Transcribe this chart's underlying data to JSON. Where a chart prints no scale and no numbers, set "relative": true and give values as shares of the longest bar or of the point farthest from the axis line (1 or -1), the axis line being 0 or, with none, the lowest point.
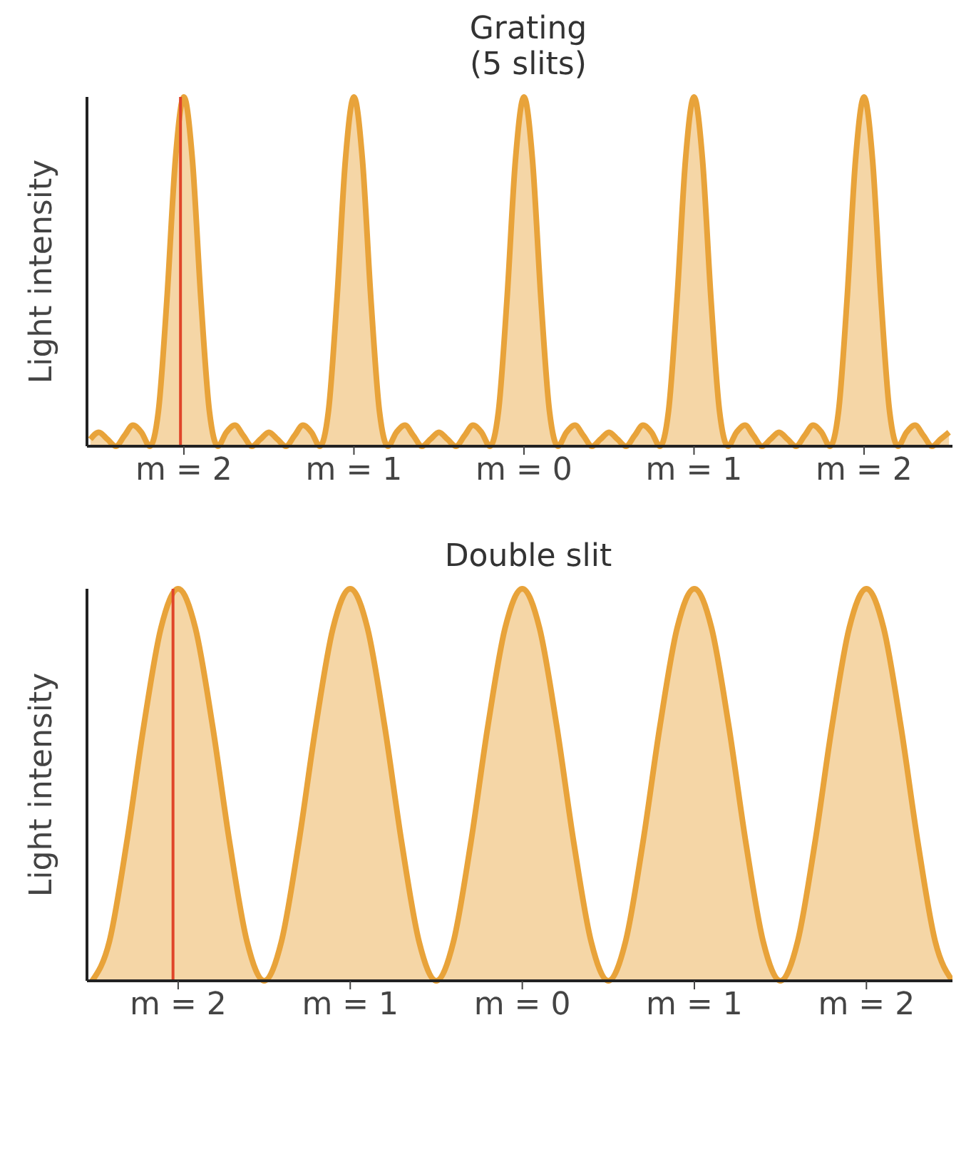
{
  "chart_data": [
    {
      "type": "area",
      "title": "Grating",
      "subtitle": "(5 slits)",
      "ylabel": "Light intensity",
      "relative": true,
      "x": [
        -2.55,
        -2.5,
        -2.45,
        -2.4,
        -2.35,
        -2.3,
        -2.25,
        -2.2,
        -2.15,
        -2.1,
        -2.05,
        -2.0,
        -1.95,
        -1.9,
        -1.85,
        -1.8,
        -1.75,
        -1.7,
        -1.65,
        -1.6,
        -1.55,
        -1.5,
        -1.45,
        -1.4,
        -1.35,
        -1.3,
        -1.25,
        -1.2,
        -1.15,
        -1.1,
        -1.05,
        -1.0,
        -0.95,
        -0.9,
        -0.85,
        -0.8,
        -0.75,
        -0.7,
        -0.65,
        -0.6,
        -0.55,
        -0.5,
        -0.45,
        -0.4,
        -0.35,
        -0.3,
        -0.25,
        -0.2,
        -0.15,
        -0.1,
        -0.05,
        0.0,
        0.05,
        0.1,
        0.15,
        0.2,
        0.25,
        0.3,
        0.35,
        0.4,
        0.45,
        0.5,
        0.55,
        0.6,
        0.65,
        0.7,
        0.75,
        0.8,
        0.85,
        0.9,
        0.95,
        1.0,
        1.05,
        1.1,
        1.15,
        1.2,
        1.25,
        1.3,
        1.35,
        1.4,
        1.45,
        1.5,
        1.55,
        1.6,
        1.65,
        1.7,
        1.75,
        1.8,
        1.85,
        1.9,
        1.95,
        2.0,
        2.05,
        2.1,
        2.15,
        2.2,
        2.25,
        2.3,
        2.35,
        2.4,
        2.45,
        2.5
      ],
      "series": [
        {
          "color": "#e8a33a",
          "values": [
            0.02,
            0.04,
            0.02,
            0,
            0.03,
            0.06,
            0.04,
            0,
            0.1,
            0.42,
            0.82,
            1,
            0.82,
            0.42,
            0.1,
            0,
            0.04,
            0.06,
            0.03,
            0,
            0.02,
            0.04,
            0.02,
            0,
            0.03,
            0.06,
            0.04,
            0,
            0.1,
            0.42,
            0.82,
            1,
            0.82,
            0.42,
            0.1,
            0,
            0.04,
            0.06,
            0.03,
            0,
            0.02,
            0.04,
            0.02,
            0,
            0.03,
            0.06,
            0.04,
            0,
            0.1,
            0.42,
            0.82,
            1,
            0.82,
            0.42,
            0.1,
            0,
            0.04,
            0.06,
            0.03,
            0,
            0.02,
            0.04,
            0.02,
            0,
            0.03,
            0.06,
            0.04,
            0,
            0.1,
            0.42,
            0.82,
            1,
            0.82,
            0.42,
            0.1,
            0,
            0.04,
            0.06,
            0.03,
            0,
            0.02,
            0.04,
            0.02,
            0,
            0.03,
            0.06,
            0.04,
            0,
            0.1,
            0.42,
            0.82,
            1,
            0.82,
            0.42,
            0.1,
            0,
            0.04,
            0.06,
            0.03,
            0,
            0.02,
            0.04
          ]
        }
      ],
      "xlim": [
        -2.57,
        2.52
      ],
      "xticks": [
        {
          "value": -2,
          "label": "m = 2"
        },
        {
          "value": -1,
          "label": "m = 1"
        },
        {
          "value": 0,
          "label": "m = 0"
        },
        {
          "value": 1,
          "label": "m = 1"
        },
        {
          "value": 2,
          "label": "m = 2"
        }
      ],
      "ref_lines": [
        {
          "axis": "x",
          "value": -2.02,
          "color": "#e0452a"
        }
      ],
      "grid": false,
      "legend": false
    },
    {
      "type": "area",
      "title": "Double slit",
      "ylabel": "Light intensity",
      "relative": true,
      "x": [
        -2.5,
        -2.4,
        -2.3,
        -2.2,
        -2.1,
        -2.0,
        -1.9,
        -1.8,
        -1.7,
        -1.6,
        -1.5,
        -1.4,
        -1.3,
        -1.2,
        -1.1,
        -1.0,
        -0.9,
        -0.8,
        -0.7,
        -0.6,
        -0.5,
        -0.4,
        -0.3,
        -0.2,
        -0.1,
        0.0,
        0.1,
        0.2,
        0.3,
        0.4,
        0.5,
        0.6,
        0.7,
        0.8,
        0.9,
        1.0,
        1.1,
        1.2,
        1.3,
        1.4,
        1.5,
        1.6,
        1.7,
        1.8,
        1.9,
        2.0,
        2.1,
        2.2,
        2.3,
        2.4,
        2.5
      ],
      "series": [
        {
          "color": "#e8a33a",
          "values": [
            0,
            0.1,
            0.35,
            0.65,
            0.9,
            1,
            0.9,
            0.65,
            0.35,
            0.1,
            0,
            0.1,
            0.35,
            0.65,
            0.9,
            1,
            0.9,
            0.65,
            0.35,
            0.1,
            0,
            0.1,
            0.35,
            0.65,
            0.9,
            1,
            0.9,
            0.65,
            0.35,
            0.1,
            0,
            0.1,
            0.35,
            0.65,
            0.9,
            1,
            0.9,
            0.65,
            0.35,
            0.1,
            0,
            0.1,
            0.35,
            0.65,
            0.9,
            1,
            0.9,
            0.65,
            0.35,
            0.1,
            0
          ]
        }
      ],
      "xlim": [
        -2.53,
        2.5
      ],
      "xticks": [
        {
          "value": -2,
          "label": "m = 2"
        },
        {
          "value": -1,
          "label": "m = 1"
        },
        {
          "value": 0,
          "label": "m = 0"
        },
        {
          "value": 1,
          "label": "m = 1"
        },
        {
          "value": 2,
          "label": "m = 2"
        }
      ],
      "ref_lines": [
        {
          "axis": "x",
          "value": -2.03,
          "color": "#e0452a"
        }
      ],
      "grid": false,
      "legend": false
    }
  ]
}
